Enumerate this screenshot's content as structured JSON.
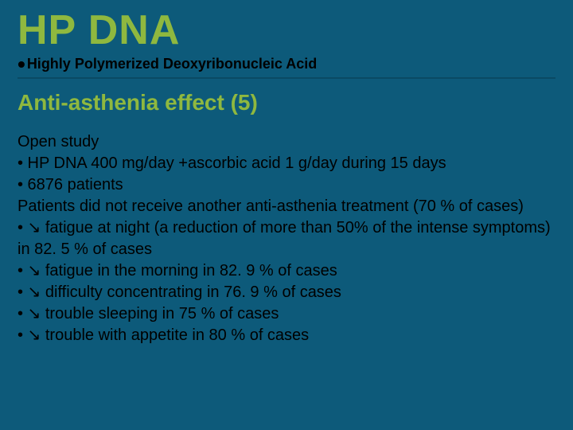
{
  "colors": {
    "background": "#0d5a7a",
    "accent": "#8fb83f",
    "text": "#000000",
    "divider": "#0a4a64"
  },
  "title": "HP DNA",
  "subtitle": "Highly Polymerized Deoxyribonucleic Acid",
  "section_heading": "Anti-asthenia effect (5)",
  "body": {
    "line1": "Open study",
    "line2": "• HP DNA 400 mg/day +ascorbic acid 1 g/day during 15 days",
    "line3": "• 6876 patients",
    "line4": "Patients did not receive another anti-asthenia treatment (70 % of cases)",
    "line5": "• ↘ fatigue at night (a reduction of more than 50% of the intense symptoms) in 82. 5 % of cases",
    "line6": "• ↘ fatigue in the morning in  82. 9 % of cases",
    "line7": "• ↘ difficulty concentrating in 76. 9 % of cases",
    "line8": "• ↘ trouble sleeping in 75 % of cases",
    "line9": "• ↘ trouble with appetite in 80 % of cases"
  },
  "typography": {
    "title_fontsize": 52,
    "title_weight": 900,
    "subtitle_fontsize": 18,
    "subtitle_weight": 700,
    "section_fontsize": 28,
    "section_weight": 700,
    "body_fontsize": 20
  }
}
